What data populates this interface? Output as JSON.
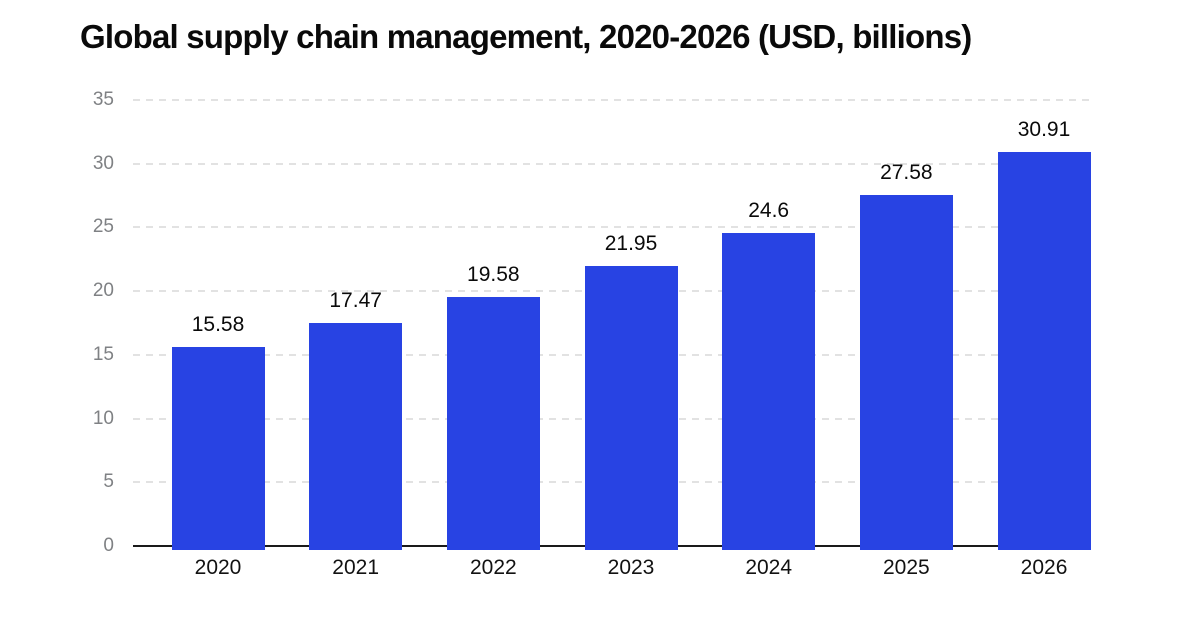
{
  "chart_data": {
    "type": "bar",
    "title": "Global supply chain management, 2020-2026 (USD, billions)",
    "categories": [
      "2020",
      "2021",
      "2022",
      "2023",
      "2024",
      "2025",
      "2026"
    ],
    "values": [
      15.58,
      17.47,
      19.58,
      21.95,
      24.6,
      27.58,
      30.91
    ],
    "value_labels": [
      "15.58",
      "17.47",
      "19.58",
      "21.95",
      "24.6",
      "27.58",
      "30.91"
    ],
    "xlabel": "",
    "ylabel": "",
    "ylim": [
      0,
      35
    ],
    "yticks": [
      0,
      5,
      10,
      15,
      20,
      25,
      30,
      35
    ],
    "grid": "horizontal-dashed",
    "legend": "none",
    "colors": {
      "bar": "#2843e3",
      "grid_line": "#e2e2e2",
      "axis_line": "#1a1a1a",
      "tick_label": "#7f8184",
      "value_label": "#0a0a0a",
      "category_label": "#121212",
      "title": "#0a0a0a",
      "background": "#ffffff"
    }
  }
}
